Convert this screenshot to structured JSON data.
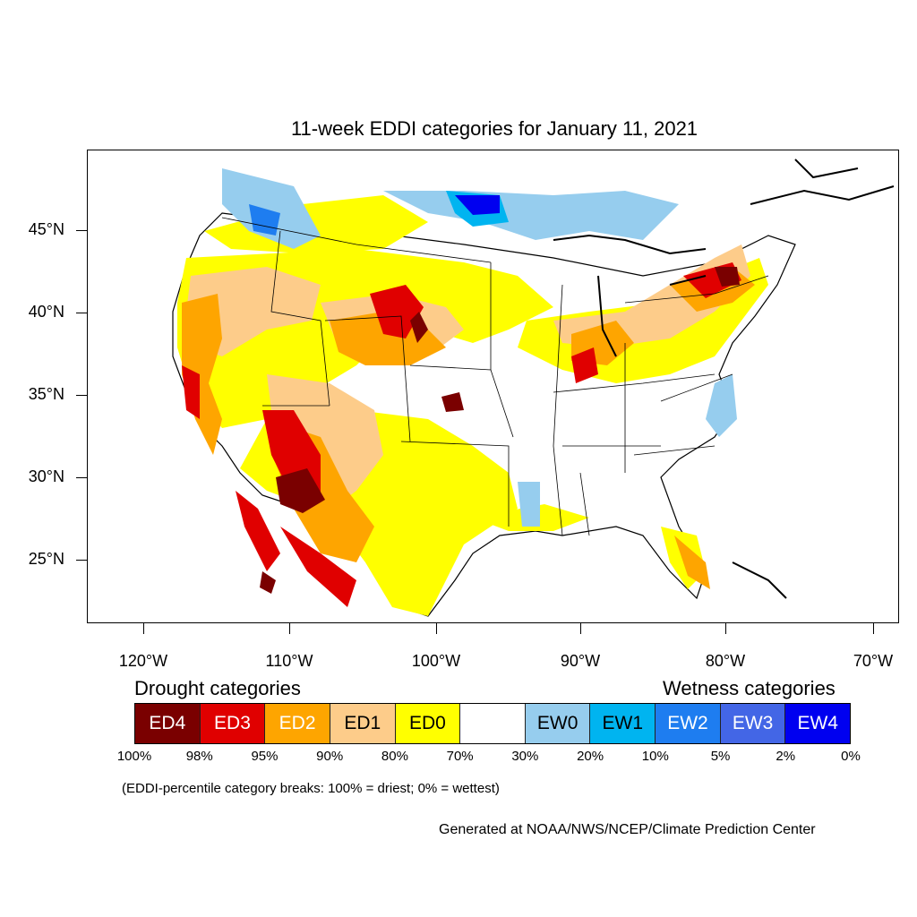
{
  "map": {
    "title": "11-week EDDI categories for January 11, 2021",
    "lat_labels": [
      "45°N",
      "40°N",
      "35°N",
      "30°N",
      "25°N"
    ],
    "lon_labels": [
      "120°W",
      "110°W",
      "100°W",
      "90°W",
      "80°W",
      "70°W"
    ],
    "colors": {
      "ED4": "#7a0000",
      "ED3": "#e00000",
      "ED2": "#fea500",
      "ED1": "#fdcc8a",
      "ED0": "#ffff00",
      "neutral": "#ffffff",
      "EW0": "#96cdee",
      "EW1": "#00b4f0",
      "EW2": "#1e7df0",
      "EW3": "#4366e6",
      "EW4": "#0000f0"
    }
  },
  "legend": {
    "drought_heading": "Drought categories",
    "wetness_heading": "Wetness categories",
    "boxes": [
      {
        "label": "ED4",
        "color": "#7a0000",
        "text_color": "#ffffff"
      },
      {
        "label": "ED3",
        "color": "#e00000",
        "text_color": "#ffffff"
      },
      {
        "label": "ED2",
        "color": "#fea500",
        "text_color": "#ffffff"
      },
      {
        "label": "ED1",
        "color": "#fdcc8a",
        "text_color": "#000000"
      },
      {
        "label": "ED0",
        "color": "#ffff00",
        "text_color": "#000000"
      },
      {
        "label": "",
        "color": "#ffffff",
        "text_color": "#000000"
      },
      {
        "label": "EW0",
        "color": "#96cdee",
        "text_color": "#000000"
      },
      {
        "label": "EW1",
        "color": "#00b4f0",
        "text_color": "#000000"
      },
      {
        "label": "EW2",
        "color": "#1e7df0",
        "text_color": "#ffffff"
      },
      {
        "label": "EW3",
        "color": "#4366e6",
        "text_color": "#ffffff"
      },
      {
        "label": "EW4",
        "color": "#0000f0",
        "text_color": "#ffffff"
      }
    ],
    "breaks": [
      "100%",
      "98%",
      "95%",
      "90%",
      "80%",
      "70%",
      "30%",
      "20%",
      "10%",
      "5%",
      "2%",
      "0%"
    ],
    "note": "(EDDI-percentile category breaks: 100% = driest; 0% = wettest)"
  },
  "credit": "Generated at NOAA/NWS/NCEP/Climate Prediction Center"
}
